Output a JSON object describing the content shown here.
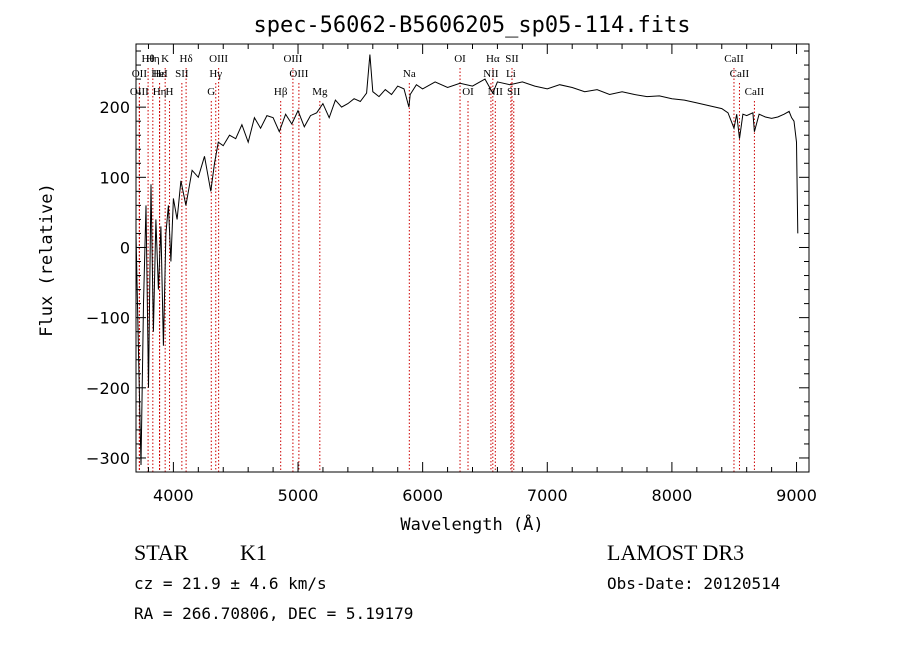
{
  "chart_data": {
    "type": "line",
    "title": "spec-56062-B5606205_sp05-114.fits",
    "xlabel": "Wavelength (Å)",
    "ylabel": "Flux (relative)",
    "xlim": [
      3700,
      9100
    ],
    "ylim": [
      -320,
      290
    ],
    "x_ticks": [
      4000,
      5000,
      6000,
      7000,
      8000,
      9000
    ],
    "x_tick_labels": [
      "4000",
      "5000",
      "6000",
      "7000",
      "8000",
      "9000"
    ],
    "y_ticks": [
      -300,
      -200,
      -100,
      0,
      100,
      200
    ],
    "y_tick_labels": [
      "−300",
      "−200",
      "−100",
      "0",
      "100",
      "200"
    ],
    "series": [
      {
        "name": "spectrum",
        "x": [
          3700,
          3720,
          3740,
          3760,
          3780,
          3800,
          3820,
          3840,
          3860,
          3880,
          3900,
          3920,
          3940,
          3960,
          3980,
          4000,
          4030,
          4060,
          4100,
          4150,
          4200,
          4250,
          4300,
          4330,
          4360,
          4400,
          4450,
          4500,
          4550,
          4600,
          4650,
          4700,
          4750,
          4800,
          4850,
          4900,
          4950,
          5000,
          5050,
          5100,
          5150,
          5200,
          5250,
          5300,
          5350,
          5400,
          5450,
          5500,
          5550,
          5577,
          5600,
          5650,
          5700,
          5750,
          5800,
          5850,
          5890,
          5900,
          5950,
          6000,
          6100,
          6200,
          6300,
          6400,
          6500,
          6563,
          6600,
          6700,
          6800,
          6900,
          7000,
          7100,
          7200,
          7300,
          7400,
          7500,
          7600,
          7700,
          7800,
          7900,
          8000,
          8100,
          8200,
          8300,
          8400,
          8450,
          8498,
          8520,
          8542,
          8570,
          8600,
          8650,
          8662,
          8700,
          8750,
          8800,
          8850,
          8900,
          8940,
          8960,
          8980,
          9000,
          9010
        ],
        "y": [
          20,
          -150,
          -310,
          -80,
          60,
          -200,
          90,
          -120,
          40,
          -60,
          30,
          -140,
          20,
          60,
          -20,
          70,
          40,
          95,
          60,
          110,
          100,
          130,
          80,
          120,
          150,
          145,
          160,
          155,
          175,
          150,
          185,
          170,
          188,
          185,
          165,
          190,
          176,
          195,
          172,
          188,
          192,
          205,
          185,
          210,
          200,
          205,
          212,
          208,
          220,
          275,
          222,
          215,
          225,
          218,
          230,
          226,
          200,
          218,
          232,
          226,
          236,
          228,
          234,
          230,
          240,
          220,
          236,
          232,
          236,
          230,
          226,
          232,
          228,
          222,
          225,
          218,
          222,
          218,
          215,
          216,
          212,
          210,
          206,
          202,
          198,
          192,
          170,
          190,
          155,
          190,
          188,
          192,
          165,
          190,
          186,
          184,
          186,
          190,
          194,
          185,
          180,
          150,
          20
        ]
      }
    ],
    "lines": [
      {
        "name": "Hθ",
        "wl": 3797,
        "row": 1
      },
      {
        "name": "OII",
        "wl": 3727,
        "row": 2
      },
      {
        "name": "OIII",
        "wl": 3727,
        "row": 3
      },
      {
        "name": "Hη",
        "wl": 3835,
        "row": 1
      },
      {
        "name": "Hε",
        "wl": 3889,
        "row": 2
      },
      {
        "name": "HeI",
        "wl": 3889,
        "row": 2
      },
      {
        "name": "Hη",
        "wl": 3889,
        "row": 3
      },
      {
        "name": "K",
        "wl": 3934,
        "row": 1
      },
      {
        "name": "H",
        "wl": 3969,
        "row": 3
      },
      {
        "name": "SII",
        "wl": 4068,
        "row": 2
      },
      {
        "name": "Hδ",
        "wl": 4102,
        "row": 1
      },
      {
        "name": "OIII",
        "wl": 4363,
        "row": 1
      },
      {
        "name": "Hγ",
        "wl": 4340,
        "row": 2
      },
      {
        "name": "G",
        "wl": 4304,
        "row": 3
      },
      {
        "name": "Hβ",
        "wl": 4861,
        "row": 3
      },
      {
        "name": "OIII",
        "wl": 4959,
        "row": 1
      },
      {
        "name": "OIII",
        "wl": 5007,
        "row": 2
      },
      {
        "name": "Mg",
        "wl": 5175,
        "row": 3
      },
      {
        "name": "Na",
        "wl": 5893,
        "row": 2
      },
      {
        "name": "OI",
        "wl": 6300,
        "row": 1
      },
      {
        "name": "OI",
        "wl": 6364,
        "row": 3
      },
      {
        "name": "Hα",
        "wl": 6563,
        "row": 1
      },
      {
        "name": "NII",
        "wl": 6548,
        "row": 2
      },
      {
        "name": "NII",
        "wl": 6583,
        "row": 3
      },
      {
        "name": "SII",
        "wl": 6717,
        "row": 1
      },
      {
        "name": "Li",
        "wl": 6708,
        "row": 2
      },
      {
        "name": "SII",
        "wl": 6731,
        "row": 3
      },
      {
        "name": "CaII",
        "wl": 8498,
        "row": 1
      },
      {
        "name": "CaII",
        "wl": 8542,
        "row": 2
      },
      {
        "name": "CaII",
        "wl": 8662,
        "row": 3
      }
    ]
  },
  "info": {
    "class_label": "STAR",
    "subclass_label": "K1",
    "cz_label": "cz = 21.9 ± 4.6 km/s",
    "survey_label": "LAMOST DR3",
    "obs_date_label": "Obs-Date: 20120514",
    "radec_label": "RA = 266.70806, DEC =   5.19179"
  },
  "colors": {
    "line": "#000000",
    "marker": "#cc0000",
    "axis": "#000000"
  }
}
